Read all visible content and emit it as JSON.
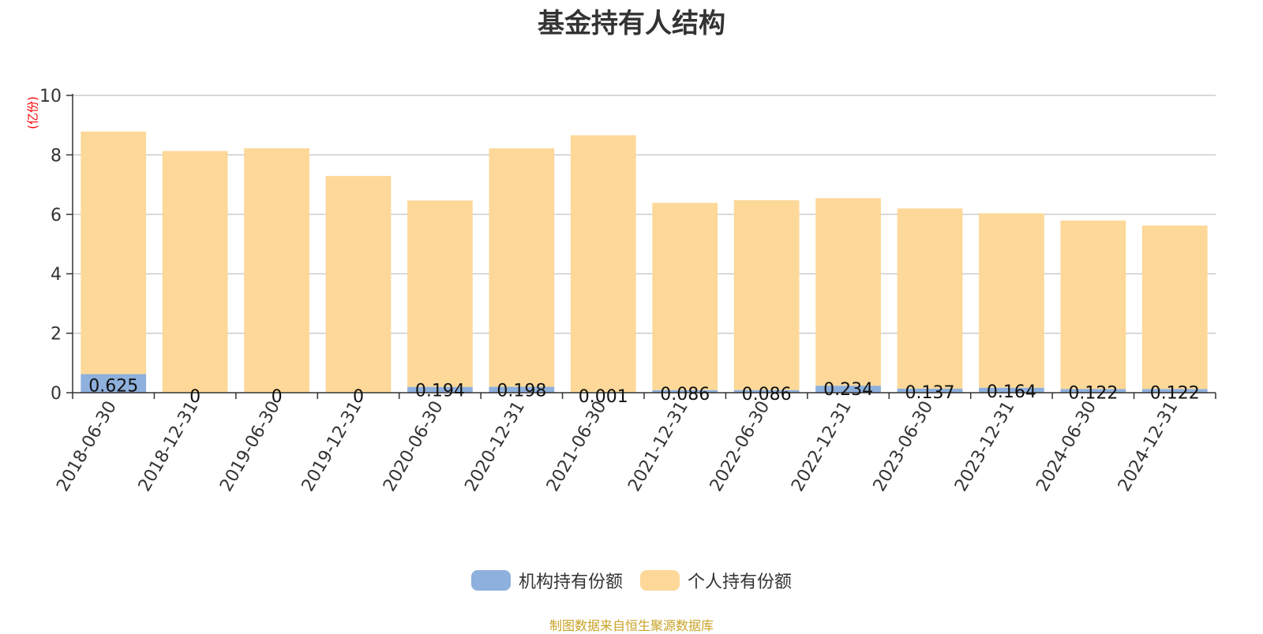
{
  "title": "基金持有人结构",
  "unit_label": "(亿份)",
  "footer": "制图数据来自恒生聚源数据库",
  "colors": {
    "institutional": "#8eb0dc",
    "individual": "#fdd898",
    "unit": "#ff0000",
    "footer": "#c9a227",
    "grid": "#cccccc",
    "axis": "#333333"
  },
  "legend": [
    {
      "label": "机构持有份额",
      "color": "#8eb0dc"
    },
    {
      "label": "个人持有份额",
      "color": "#fdd898"
    }
  ],
  "chart_data": {
    "type": "bar",
    "stacked": true,
    "title": "基金持有人结构",
    "ylabel": "(亿份)",
    "xlabel": "",
    "ylim": [
      0,
      10
    ],
    "yticks": [
      0,
      2,
      4,
      6,
      8,
      10
    ],
    "grid": true,
    "legend_position": "bottom",
    "categories": [
      "2018-06-30",
      "2018-12-31",
      "2019-06-30",
      "2019-12-31",
      "2020-06-30",
      "2020-12-31",
      "2021-06-30",
      "2021-12-31",
      "2022-06-30",
      "2022-12-31",
      "2023-06-30",
      "2023-12-31",
      "2024-06-30",
      "2024-12-31"
    ],
    "series": [
      {
        "name": "机构持有份额",
        "color": "#8eb0dc",
        "values": [
          0.625,
          0,
          0,
          0,
          0.194,
          0.198,
          0.001,
          0.086,
          0.086,
          0.234,
          0.137,
          0.164,
          0.122,
          0.122
        ],
        "labels": [
          "0.625",
          "0",
          "0",
          "0",
          "0.194",
          "0.198",
          "0.001",
          "0.086",
          "0.086",
          "0.234",
          "0.137",
          "0.164",
          "0.122",
          "0.122"
        ]
      },
      {
        "name": "个人持有份额",
        "color": "#fdd898",
        "values": [
          8.16,
          8.13,
          8.22,
          7.29,
          6.27,
          8.02,
          8.66,
          6.3,
          6.39,
          6.31,
          6.06,
          5.87,
          5.67,
          5.5
        ]
      }
    ]
  }
}
